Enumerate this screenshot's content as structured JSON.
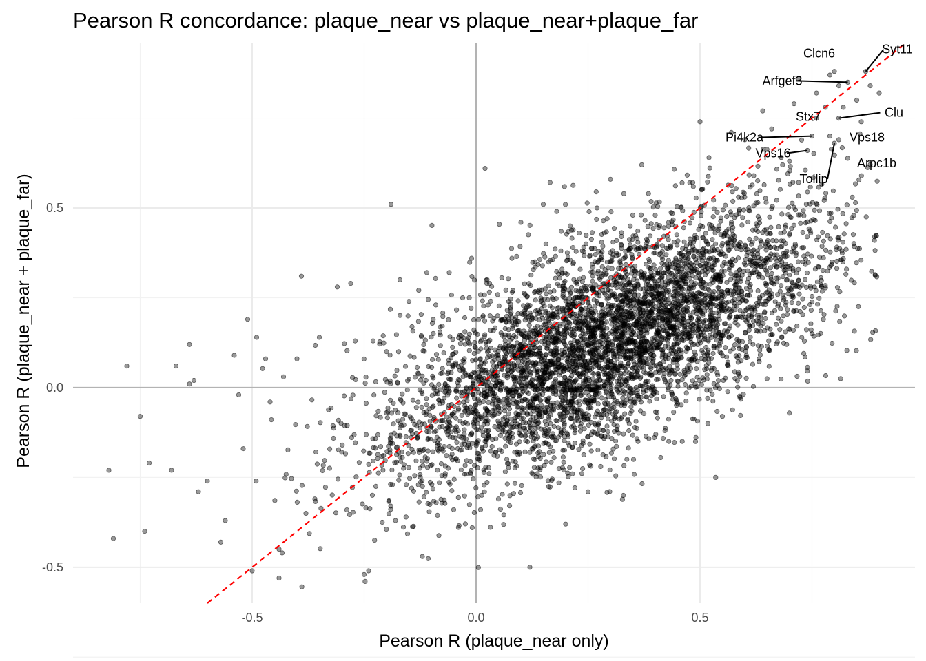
{
  "chart_data": {
    "type": "scatter",
    "title": "Pearson R concordance: plaque_near vs plaque_near+plaque_far",
    "xlabel": "Pearson R (plaque_near only)",
    "ylabel": "Pearson R (plaque_near + plaque_far)",
    "xlim": [
      -0.9,
      0.98
    ],
    "ylim": [
      -0.6,
      0.96
    ],
    "x_ticks": [
      {
        "value": -0.5,
        "label": "-0.5"
      },
      {
        "value": 0.0,
        "label": "0.0"
      },
      {
        "value": 0.5,
        "label": "0.5"
      }
    ],
    "y_ticks": [
      {
        "value": -0.5,
        "label": "-0.5"
      },
      {
        "value": 0.0,
        "label": "0.0"
      },
      {
        "value": 0.5,
        "label": "0.5"
      }
    ],
    "grid": true,
    "reference_line": {
      "type": "identity",
      "slope": 1,
      "intercept": 0,
      "style": "dashed",
      "color": "#ff0000"
    },
    "point_color": "#000000",
    "point_opacity": 0.4,
    "cloud": {
      "n": 5200,
      "x_center": 0.3,
      "x_sd": 0.25,
      "slope": 0.5,
      "intercept": -0.02,
      "residual_sd": 0.14,
      "x_min": -0.82,
      "x_max": 0.9
    },
    "points": [
      [
        -0.82,
        -0.23
      ],
      [
        -0.81,
        -0.42
      ],
      [
        -0.78,
        0.06
      ],
      [
        -0.75,
        -0.08
      ],
      [
        -0.74,
        -0.4
      ],
      [
        -0.73,
        -0.21
      ],
      [
        -0.68,
        -0.23
      ],
      [
        -0.67,
        0.06
      ],
      [
        -0.64,
        0.12
      ],
      [
        -0.64,
        0.01
      ],
      [
        -0.63,
        0.02
      ],
      [
        -0.62,
        -0.29
      ],
      [
        -0.6,
        -0.26
      ],
      [
        -0.57,
        -0.43
      ],
      [
        -0.56,
        -0.37
      ],
      [
        -0.54,
        0.09
      ],
      [
        -0.53,
        -0.02
      ],
      [
        -0.52,
        -0.17
      ],
      [
        -0.51,
        0.19
      ],
      [
        -0.5,
        -0.51
      ],
      [
        -0.49,
        0.14
      ],
      [
        -0.47,
        0.08
      ],
      [
        -0.46,
        -0.04
      ],
      [
        -0.44,
        -0.45
      ],
      [
        -0.44,
        -0.53
      ],
      [
        -0.43,
        0.03
      ],
      [
        -0.4,
        0.08
      ],
      [
        -0.39,
        0.31
      ],
      [
        -0.38,
        -0.35
      ],
      [
        -0.36,
        -0.31
      ],
      [
        -0.35,
        0.14
      ],
      [
        -0.31,
        0.28
      ],
      [
        -0.3,
        -0.18
      ],
      [
        -0.28,
        0.29
      ],
      [
        -0.27,
        0.13
      ],
      [
        -0.25,
        -0.52
      ],
      [
        -0.24,
        -0.51
      ],
      [
        -0.23,
        0.13
      ],
      [
        -0.2,
        0.1
      ],
      [
        -0.19,
        0.51
      ],
      [
        -0.18,
        -0.37
      ],
      [
        -0.17,
        0.3
      ],
      [
        -0.15,
        0.24
      ],
      [
        -0.12,
        -0.47
      ],
      [
        -0.11,
        0.32
      ],
      [
        -0.09,
        0.23
      ],
      [
        -0.06,
        0.32
      ],
      [
        -0.05,
        -0.34
      ],
      [
        -0.03,
        0.25
      ],
      [
        -0.01,
        0.36
      ],
      [
        0.01,
        -0.34
      ],
      [
        0.02,
        0.61
      ],
      [
        0.03,
        0.29
      ],
      [
        0.05,
        -0.31
      ],
      [
        0.08,
        0.36
      ],
      [
        0.1,
        0.46
      ],
      [
        0.12,
        -0.5
      ],
      [
        0.15,
        0.51
      ],
      [
        0.18,
        0.49
      ],
      [
        0.2,
        -0.38
      ],
      [
        0.21,
        0.45
      ],
      [
        0.23,
        0.43
      ],
      [
        0.25,
        -0.29
      ],
      [
        0.27,
        0.5
      ],
      [
        0.3,
        0.58
      ],
      [
        0.33,
        0.54
      ],
      [
        0.35,
        0.48
      ],
      [
        0.37,
        0.62
      ],
      [
        0.4,
        0.48
      ],
      [
        0.43,
        0.46
      ],
      [
        0.46,
        0.57
      ],
      [
        0.49,
        -0.15
      ],
      [
        0.5,
        0.74
      ],
      [
        0.52,
        0.64
      ],
      [
        0.55,
        -0.08
      ],
      [
        0.57,
        0.71
      ],
      [
        0.6,
        0.69
      ],
      [
        0.62,
        0.59
      ],
      [
        0.64,
        0.77
      ],
      [
        0.66,
        0.72
      ],
      [
        0.68,
        0.43
      ],
      [
        0.7,
        0.63
      ],
      [
        0.71,
        0.79
      ],
      [
        0.72,
        0.86
      ],
      [
        0.73,
        0.35
      ],
      [
        0.75,
        0.15
      ],
      [
        0.76,
        0.82
      ],
      [
        0.78,
        0.78
      ],
      [
        0.79,
        0.87
      ],
      [
        0.81,
        0.84
      ],
      [
        0.82,
        0.78
      ],
      [
        0.84,
        0.53
      ],
      [
        0.85,
        0.8
      ],
      [
        0.86,
        0.74
      ],
      [
        0.88,
        0.84
      ],
      [
        0.89,
        0.42
      ],
      [
        0.9,
        0.82
      ]
    ],
    "highlighted": [
      {
        "gene": "Syt11",
        "x": 0.87,
        "y": 0.88
      },
      {
        "gene": "Clcn6",
        "x": 0.8,
        "y": 0.88
      },
      {
        "gene": "Arfgef3",
        "x": 0.83,
        "y": 0.85
      },
      {
        "gene": "Clu",
        "x": 0.81,
        "y": 0.75
      },
      {
        "gene": "Stx7",
        "x": 0.76,
        "y": 0.75
      },
      {
        "gene": "Pi4k2a",
        "x": 0.75,
        "y": 0.7
      },
      {
        "gene": "Vps18",
        "x": 0.79,
        "y": 0.7
      },
      {
        "gene": "Vps16",
        "x": 0.74,
        "y": 0.66
      },
      {
        "gene": "Tollip",
        "x": 0.8,
        "y": 0.68
      },
      {
        "gene": "Arpc1b",
        "x": 0.81,
        "y": 0.69
      }
    ]
  }
}
